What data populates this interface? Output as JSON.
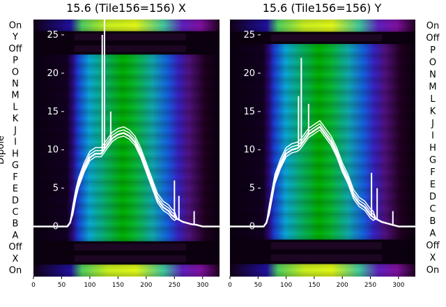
{
  "chart_data": [
    {
      "type": "heatmap",
      "title": "15.6 (Tile156=156) X",
      "ylabel": "Dipole",
      "row_labels": [
        "On",
        "Y",
        "Off",
        "P",
        "O",
        "N",
        "M",
        "L",
        "K",
        "J",
        "I",
        "H",
        "G",
        "F",
        "E",
        "D",
        "C",
        "B",
        "A",
        "Off",
        "X",
        "On"
      ],
      "x_ticks": [
        0,
        50,
        100,
        150,
        200,
        250,
        300
      ],
      "y_ticks": [
        0,
        5,
        10,
        15,
        20,
        25
      ],
      "xlim": [
        0,
        330
      ],
      "ylim": [
        -6.5,
        27
      ],
      "overlay_series": {
        "type": "line",
        "color": "#ffffff",
        "x": [
          0,
          60,
          65,
          70,
          75,
          80,
          90,
          100,
          110,
          120,
          125,
          130,
          135,
          140,
          150,
          160,
          170,
          180,
          190,
          200,
          210,
          220,
          230,
          240,
          245,
          250,
          255,
          260,
          265,
          270,
          280,
          290,
          300,
          320,
          330
        ],
        "y": [
          0,
          0,
          0.5,
          2,
          4,
          5.5,
          7.5,
          9,
          9.5,
          9.5,
          10,
          10.5,
          11,
          11.5,
          12,
          12.2,
          11.8,
          11,
          9.5,
          7.5,
          5.5,
          3.5,
          2.5,
          2,
          1.5,
          1.2,
          1,
          0.8,
          0.6,
          0.5,
          0.3,
          0.2,
          0,
          0,
          0
        ],
        "spikes": [
          {
            "x": 122,
            "y": 25
          },
          {
            "x": 126,
            "y": 27
          },
          {
            "x": 137,
            "y": 15
          },
          {
            "x": 250,
            "y": 6
          },
          {
            "x": 258,
            "y": 4
          },
          {
            "x": 285,
            "y": 2
          }
        ]
      }
    },
    {
      "type": "heatmap",
      "title": "15.6 (Tile156=156) Y",
      "row_labels": [
        "On",
        "Off",
        "P",
        "O",
        "N",
        "M",
        "L",
        "K",
        "J",
        "I",
        "H",
        "G",
        "F",
        "E",
        "D",
        "C",
        "B",
        "A",
        "Off",
        "X",
        "On"
      ],
      "x_ticks": [
        0,
        50,
        100,
        150,
        200,
        250,
        300
      ],
      "y_ticks": [
        0,
        5,
        10,
        15,
        20,
        25
      ],
      "xlim": [
        0,
        330
      ],
      "ylim": [
        -6.5,
        27
      ],
      "overlay_series": {
        "type": "line",
        "color": "#ffffff",
        "x": [
          0,
          60,
          65,
          70,
          75,
          80,
          90,
          100,
          110,
          120,
          125,
          130,
          135,
          140,
          150,
          160,
          170,
          180,
          190,
          200,
          210,
          220,
          230,
          240,
          245,
          250,
          255,
          260,
          265,
          270,
          280,
          290,
          300,
          320,
          330
        ],
        "y": [
          0,
          0,
          0.5,
          2,
          4,
          6,
          8,
          9.5,
          10,
          10.2,
          10.5,
          11,
          11.5,
          12,
          12.5,
          13,
          12,
          11,
          9.5,
          7.5,
          6,
          4,
          3,
          2.5,
          2,
          1.5,
          1.2,
          1,
          0.8,
          0.6,
          0.4,
          0.2,
          0,
          0,
          0
        ],
        "spikes": [
          {
            "x": 122,
            "y": 17
          },
          {
            "x": 127,
            "y": 22
          },
          {
            "x": 140,
            "y": 16
          },
          {
            "x": 252,
            "y": 7
          },
          {
            "x": 262,
            "y": 5
          },
          {
            "x": 290,
            "y": 2
          }
        ]
      }
    }
  ]
}
